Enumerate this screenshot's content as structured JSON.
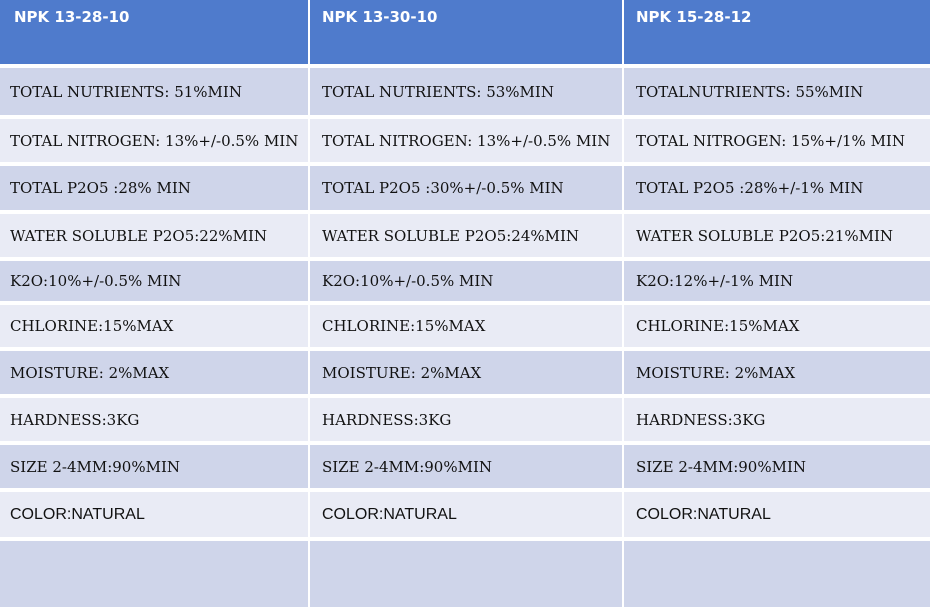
{
  "headers": [
    "NPK 13-28-10",
    "NPK 13-30-10",
    "NPK 15-28-12"
  ],
  "rows": [
    [
      "TOTAL NUTRIENTS: 51%MIN",
      "TOTAL NUTRIENTS: 53%MIN",
      "TOTALNUTRIENTS: 55%MIN"
    ],
    [
      "TOTAL NITROGEN: 13%+/-0.5% MIN",
      "TOTAL NITROGEN: 13%+/-0.5% MIN",
      "TOTAL NITROGEN: 15%+/1% MIN"
    ],
    [
      "TOTAL P2O5 :28% MIN",
      "TOTAL P2O5 :30%+/-0.5% MIN",
      "TOTAL P2O5 :28%+/-1% MIN"
    ],
    [
      "WATER SOLUBLE P2O5:22%MIN",
      "WATER SOLUBLE P2O5:24%MIN",
      "WATER SOLUBLE P2O5:21%MIN"
    ],
    [
      "K2O:10%+/-0.5% MIN",
      "K2O:10%+/-0.5% MIN",
      "K2O:12%+/-1% MIN"
    ],
    [
      "CHLORINE:15%MAX",
      "CHLORINE:15%MAX",
      "CHLORINE:15%MAX"
    ],
    [
      "MOISTURE: 2%MAX",
      "MOISTURE: 2%MAX",
      "MOISTURE: 2%MAX"
    ],
    [
      "HARDNESS:3KG",
      "HARDNESS:3KG",
      "HARDNESS:3KG"
    ],
    [
      "SIZE 2-4MM:90%MIN",
      "SIZE 2-4MM:90%MIN",
      "SIZE 2-4MM:90%MIN"
    ],
    [
      "COLOR:NATURAL",
      "COLOR:NATURAL",
      "COLOR:NATURAL"
    ],
    [
      "",
      "",
      ""
    ]
  ],
  "colors": {
    "header": "#4f7bcc",
    "row_dark": "#cfd5ea",
    "row_light": "#e9ebf5"
  }
}
